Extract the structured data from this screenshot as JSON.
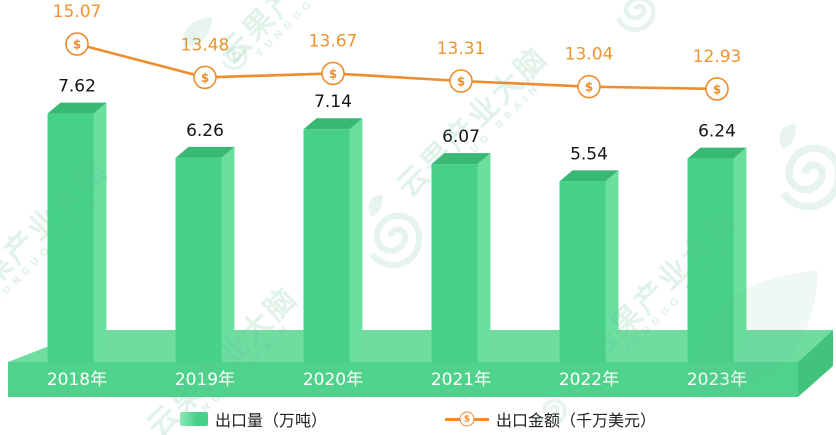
{
  "chart_data": {
    "type": "combo-bar-line",
    "categories": [
      "2018年",
      "2019年",
      "2020年",
      "2021年",
      "2022年",
      "2023年"
    ],
    "series": [
      {
        "name": "出口量（万吨）",
        "type": "bar",
        "values": [
          7.62,
          6.26,
          7.14,
          6.07,
          5.54,
          6.24
        ]
      },
      {
        "name": "出口金额（千万美元）",
        "type": "line",
        "values": [
          15.07,
          13.48,
          13.67,
          13.31,
          13.04,
          12.93
        ]
      }
    ],
    "title": "",
    "xlabel": "",
    "ylabel": "",
    "grid": false,
    "axes_visible": false,
    "data_labels": true,
    "legend_position": "bottom",
    "style": "3d-green-pedestal-bars"
  },
  "marker_symbol": "$",
  "watermark": {
    "text": "云果产业大脑",
    "subtext": "YUNGUO BRAIN"
  },
  "colors": {
    "bar_front": "#47D089",
    "bar_side": "#6ADF9F",
    "bar_top": "#37B873",
    "platform_front": "#4FD28C",
    "platform_top": "#70DCA0",
    "platform_side": "#41C27D",
    "line": "#EF8C2D",
    "line_label": "#F2932B",
    "bar_label": "#141414",
    "year_label": "#FFFFFF",
    "legend_text": "#222222",
    "background": "#FFFFFF"
  }
}
